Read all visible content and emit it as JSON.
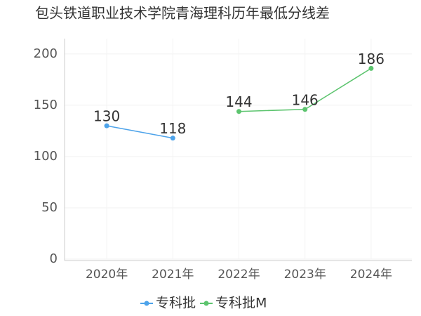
{
  "chart_data": {
    "type": "line",
    "title": "包头铁道职业技术学院青海理科历年最低分线差",
    "categories": [
      "2020年",
      "2021年",
      "2022年",
      "2023年",
      "2024年"
    ],
    "series": [
      {
        "name": "专科批",
        "color": "#4da3ea",
        "values": [
          130,
          118,
          null,
          null,
          null
        ]
      },
      {
        "name": "专科批M",
        "color": "#5cc46e",
        "values": [
          null,
          null,
          144,
          146,
          186
        ]
      }
    ],
    "ylim": [
      0,
      215
    ],
    "yticks": [
      0,
      50,
      100,
      150,
      200
    ],
    "grid": true,
    "legend": "bottom"
  }
}
